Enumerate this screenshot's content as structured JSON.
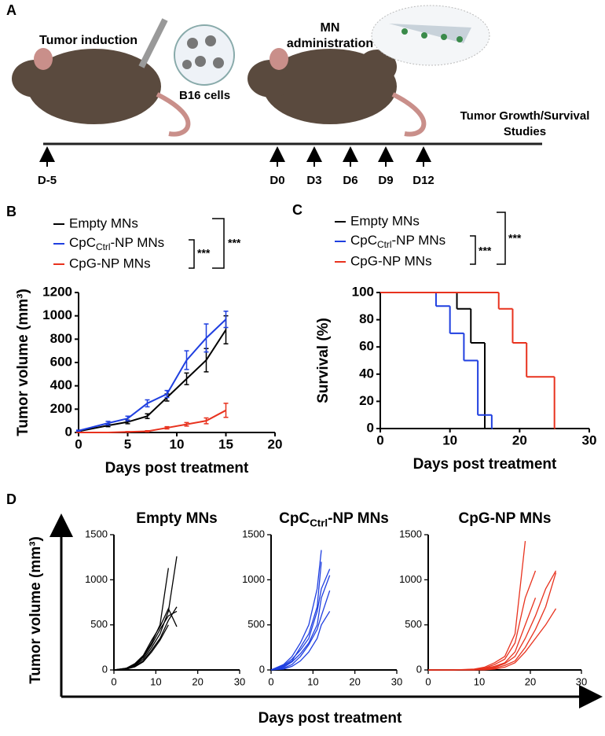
{
  "figure": {
    "panel_labels": [
      "A",
      "B",
      "C",
      "D"
    ],
    "illustration": {
      "tumor_induction": "Tumor induction",
      "cells": "B16 cells",
      "mn": [
        "MN",
        "administration"
      ],
      "studies": [
        "Tumor Growth/Survival",
        "Studies"
      ]
    },
    "timepoints": [
      "D-5",
      "D0",
      "D3",
      "D6",
      "D9",
      "D12"
    ],
    "panel_d": {
      "x_label": "Days post treatment",
      "y_label": "Tumor volume (mm³)"
    }
  },
  "chart_data": [
    {
      "type": "line",
      "x_label": "Days post treatment",
      "y_label": "Tumor volume (mm³)",
      "xlim": [
        0,
        20
      ],
      "xticks": [
        0,
        5,
        10,
        15,
        20
      ],
      "ylim": [
        0,
        1200
      ],
      "yticks": [
        0,
        200,
        400,
        600,
        800,
        1000,
        1200
      ],
      "x": [
        0,
        3,
        5,
        7,
        9,
        11,
        13,
        15
      ],
      "series": [
        {
          "name": "Empty MNs",
          "color": "#000000",
          "values": [
            10,
            60,
            90,
            140,
            300,
            460,
            620,
            880
          ],
          "errors": [
            5,
            10,
            15,
            20,
            30,
            50,
            100,
            120
          ]
        },
        {
          "name": [
            "CpC",
            "Ctrl",
            "-NP MNs"
          ],
          "color": "#1f3fe0",
          "values": [
            15,
            80,
            120,
            250,
            330,
            620,
            810,
            970
          ],
          "errors": [
            5,
            15,
            20,
            30,
            30,
            80,
            120,
            70
          ]
        },
        {
          "name": "CpG-NP MNs",
          "color": "#e8321e",
          "values": [
            0,
            0,
            5,
            10,
            40,
            70,
            100,
            190
          ],
          "errors": [
            0,
            0,
            3,
            5,
            10,
            15,
            25,
            60
          ]
        }
      ],
      "significance": [
        "***",
        "***"
      ]
    },
    {
      "type": "step",
      "x_label": "Days post treatment",
      "y_label": "Survival (%)",
      "xlim": [
        0,
        30
      ],
      "xticks": [
        0,
        10,
        20,
        30
      ],
      "ylim": [
        0,
        100
      ],
      "yticks": [
        0,
        20,
        40,
        60,
        80,
        100
      ],
      "series": [
        {
          "name": "Empty MNs",
          "color": "#000000",
          "x": [
            0,
            11,
            13,
            15
          ],
          "values": [
            100,
            88,
            63,
            0
          ]
        },
        {
          "name": [
            "CpC",
            "Ctrl",
            "-NP MNs"
          ],
          "color": "#1f3fe0",
          "x": [
            0,
            8,
            10,
            12,
            14,
            16
          ],
          "values": [
            100,
            90,
            70,
            50,
            10,
            0
          ]
        },
        {
          "name": "CpG-NP MNs",
          "color": "#e8321e",
          "x": [
            0,
            17,
            19,
            21,
            25
          ],
          "values": [
            100,
            88,
            63,
            38,
            0
          ]
        }
      ],
      "significance": [
        "***",
        "***"
      ]
    },
    {
      "type": "line",
      "title": "Empty MNs",
      "xlim": [
        0,
        30
      ],
      "xticks": [
        0,
        10,
        20,
        30
      ],
      "ylim": [
        0,
        1500
      ],
      "yticks": [
        0,
        500,
        1000,
        1500
      ],
      "x": [
        0,
        3,
        5,
        7,
        9,
        11,
        13,
        15
      ],
      "series": [
        {
          "color": "#000000",
          "values": [
            0,
            20,
            60,
            150,
            300,
            500,
            1130,
            null
          ]
        },
        {
          "color": "#000000",
          "values": [
            0,
            15,
            50,
            120,
            250,
            400,
            650,
            1260
          ]
        },
        {
          "color": "#000000",
          "values": [
            0,
            10,
            40,
            100,
            220,
            350,
            550,
            700
          ]
        },
        {
          "color": "#000000",
          "values": [
            0,
            20,
            70,
            160,
            330,
            480,
            680,
            480
          ]
        },
        {
          "color": "#000000",
          "values": [
            0,
            15,
            55,
            140,
            280,
            450,
            600,
            650
          ]
        },
        {
          "color": "#000000",
          "values": [
            0,
            10,
            35,
            90,
            200,
            330,
            500,
            null
          ]
        }
      ]
    },
    {
      "type": "line",
      "title": [
        "CpC",
        "Ctrl",
        "-NP MNs"
      ],
      "xlim": [
        0,
        30
      ],
      "xticks": [
        0,
        10,
        20,
        30
      ],
      "ylim": [
        0,
        1500
      ],
      "yticks": [
        0,
        500,
        1000,
        1500
      ],
      "x": [
        0,
        3,
        5,
        7,
        9,
        11,
        12,
        14
      ],
      "series": [
        {
          "color": "#1f3fe0",
          "values": [
            0,
            60,
            150,
            300,
            500,
            900,
            1330,
            null
          ]
        },
        {
          "color": "#1f3fe0",
          "values": [
            0,
            40,
            100,
            250,
            400,
            700,
            1200,
            null
          ]
        },
        {
          "color": "#1f3fe0",
          "values": [
            0,
            50,
            120,
            220,
            350,
            650,
            900,
            1120
          ]
        },
        {
          "color": "#1f3fe0",
          "values": [
            0,
            30,
            90,
            180,
            300,
            500,
            800,
            1050
          ]
        },
        {
          "color": "#1f3fe0",
          "values": [
            0,
            20,
            60,
            150,
            280,
            450,
            600,
            880
          ]
        },
        {
          "color": "#1f3fe0",
          "values": [
            0,
            10,
            40,
            100,
            200,
            350,
            500,
            650
          ]
        }
      ]
    },
    {
      "type": "line",
      "title": "CpG-NP MNs",
      "xlim": [
        0,
        30
      ],
      "xticks": [
        0,
        10,
        20,
        30
      ],
      "ylim": [
        0,
        1500
      ],
      "yticks": [
        0,
        500,
        1000,
        1500
      ],
      "x": [
        0,
        5,
        9,
        11,
        13,
        15,
        17,
        19,
        21,
        23,
        25
      ],
      "series": [
        {
          "color": "#e8321e",
          "values": [
            0,
            0,
            10,
            30,
            80,
            150,
            400,
            1430,
            null,
            null,
            null
          ]
        },
        {
          "color": "#e8321e",
          "values": [
            0,
            0,
            5,
            20,
            60,
            120,
            300,
            800,
            1100,
            null,
            null
          ]
        },
        {
          "color": "#e8321e",
          "values": [
            0,
            0,
            5,
            15,
            40,
            80,
            200,
            500,
            800,
            null,
            null
          ]
        },
        {
          "color": "#e8321e",
          "values": [
            0,
            0,
            0,
            10,
            30,
            70,
            150,
            350,
            600,
            900,
            1100
          ]
        },
        {
          "color": "#e8321e",
          "values": [
            0,
            0,
            0,
            5,
            20,
            50,
            100,
            250,
            450,
            700,
            1080
          ]
        },
        {
          "color": "#e8321e",
          "values": [
            0,
            0,
            0,
            0,
            10,
            30,
            80,
            200,
            350,
            500,
            680
          ]
        }
      ]
    }
  ]
}
